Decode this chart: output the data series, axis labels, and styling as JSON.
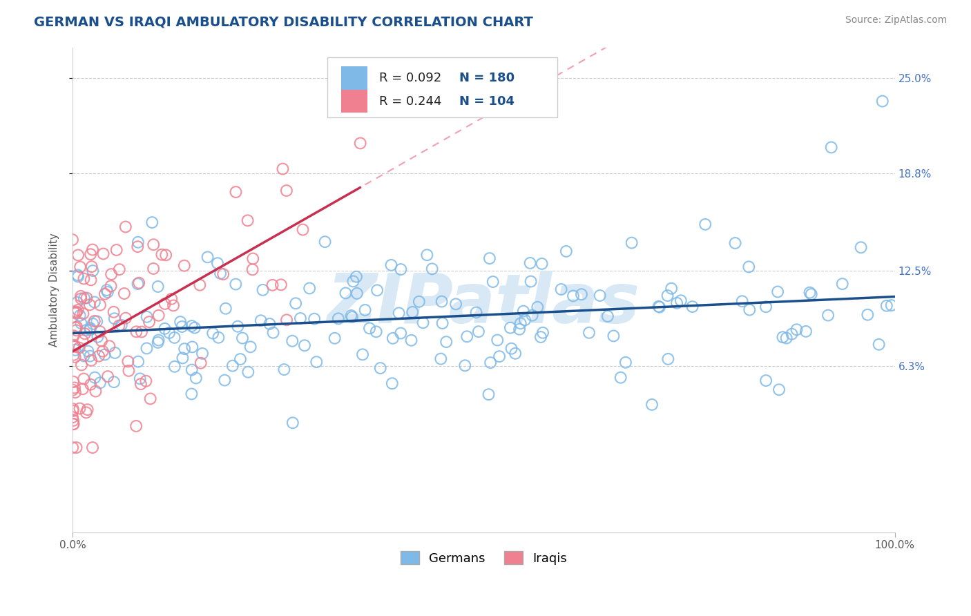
{
  "title": "GERMAN VS IRAQI AMBULATORY DISABILITY CORRELATION CHART",
  "source": "Source: ZipAtlas.com",
  "ylabel": "Ambulatory Disability",
  "watermark": "ZIPatlas",
  "xlim": [
    0.0,
    1.0
  ],
  "ylim": [
    -0.045,
    0.27
  ],
  "xtick_labels": [
    "0.0%",
    "100.0%"
  ],
  "ytick_labels": [
    "6.3%",
    "12.5%",
    "18.8%",
    "25.0%"
  ],
  "ytick_values": [
    0.063,
    0.125,
    0.188,
    0.25
  ],
  "german_R": 0.092,
  "german_N": 180,
  "iraqi_R": 0.244,
  "iraqi_N": 104,
  "german_color": "#7EB9E8",
  "iraqi_color": "#F08090",
  "german_line_color": "#1B4F8C",
  "iraqi_line_color": "#C83050",
  "iraqi_dash_color": "#F0A0B0",
  "background_color": "#FFFFFF",
  "title_color": "#1B4F8C",
  "title_fontsize": 14,
  "axis_label_fontsize": 11,
  "source_fontsize": 10,
  "watermark_color": "#D8E8F5",
  "grid_color": "#CCCCCC",
  "grid_style": "--",
  "scatter_size": 130,
  "scatter_linewidth": 1.5
}
